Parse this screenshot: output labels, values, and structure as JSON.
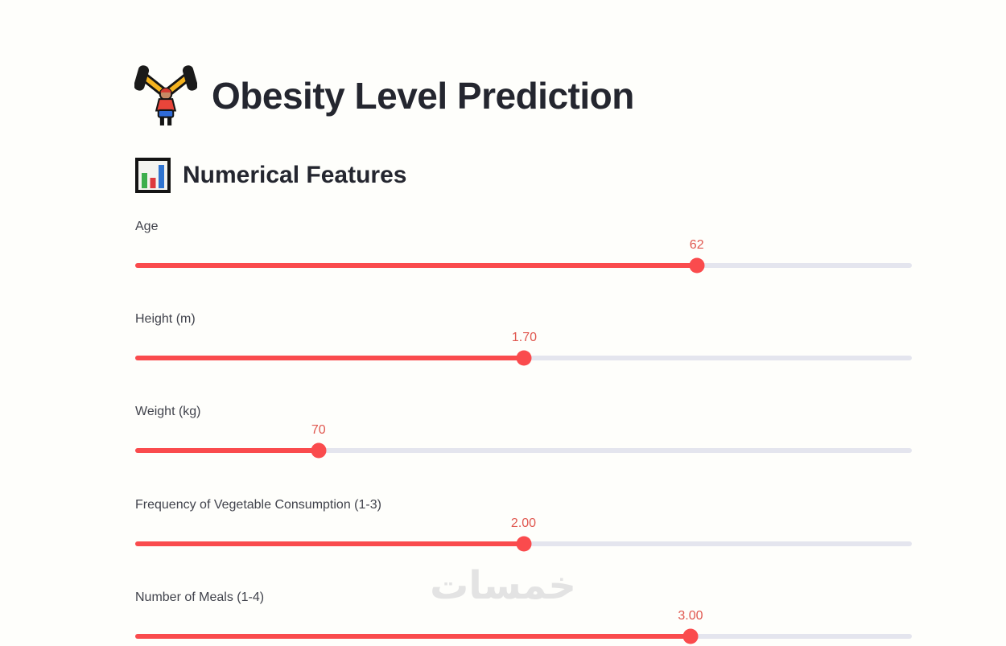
{
  "page": {
    "title": "Obesity Level Prediction",
    "title_icon": "weightlifter-icon",
    "section_title": "Numerical Features",
    "section_icon": "bar-chart-icon"
  },
  "sliders": [
    {
      "label": "Age",
      "value": "62",
      "percent": 72.3
    },
    {
      "label": "Height (m)",
      "value": "1.70",
      "percent": 50.1
    },
    {
      "label": "Weight (kg)",
      "value": "70",
      "percent": 23.6
    },
    {
      "label": "Frequency of Vegetable Consumption (1-3)",
      "value": "2.00",
      "percent": 50.0
    },
    {
      "label": "Number of Meals (1-4)",
      "value": "3.00",
      "percent": 71.5
    }
  ],
  "watermark": {
    "text": "خمسات"
  },
  "colors": {
    "primary": "#fa4b4d",
    "value_red": "#e0574f",
    "track": "#e4e5ee",
    "label": "#41434c",
    "heading": "#24262f",
    "watermark": "#e3e3e3",
    "background": "#fefefb"
  }
}
